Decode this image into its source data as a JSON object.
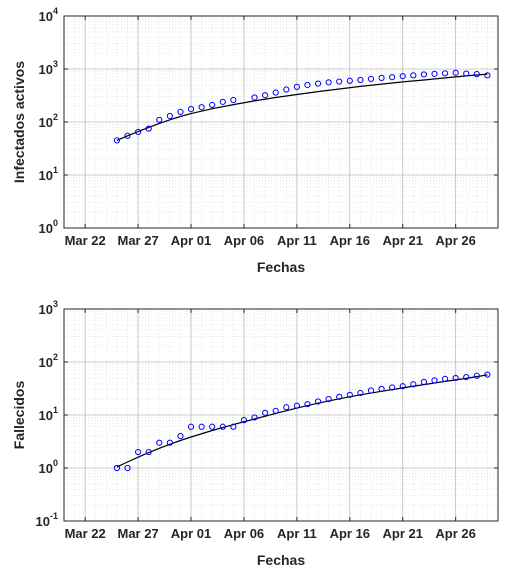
{
  "chart_data": [
    {
      "type": "scatter",
      "xlabel": "Fechas",
      "ylabel": "Infectados activos",
      "yscale": "log",
      "ylim": [
        1,
        10000
      ],
      "xlim": [
        "2020-03-20",
        "2020-04-30"
      ],
      "x_ticks": [
        "Mar 22",
        "Mar 27",
        "Apr 01",
        "Apr 06",
        "Apr 11",
        "Apr 16",
        "Apr 21",
        "Apr 26"
      ],
      "y_ticks": [
        {
          "base": "10",
          "exp": "0",
          "value": 1
        },
        {
          "base": "10",
          "exp": "1",
          "value": 10
        },
        {
          "base": "10",
          "exp": "2",
          "value": 100
        },
        {
          "base": "10",
          "exp": "3",
          "value": 1000
        },
        {
          "base": "10",
          "exp": "4",
          "value": 10000
        }
      ],
      "grid": true,
      "minor_grid": true,
      "series": [
        {
          "style": "markers",
          "marker": "circle",
          "color": "#0000ff",
          "x": [
            "2020-03-25",
            "2020-03-26",
            "2020-03-27",
            "2020-03-28",
            "2020-03-29",
            "2020-03-30",
            "2020-03-31",
            "2020-04-01",
            "2020-04-02",
            "2020-04-03",
            "2020-04-04",
            "2020-04-05",
            "2020-04-07",
            "2020-04-08",
            "2020-04-09",
            "2020-04-10",
            "2020-04-11",
            "2020-04-12",
            "2020-04-13",
            "2020-04-14",
            "2020-04-15",
            "2020-04-16",
            "2020-04-17",
            "2020-04-18",
            "2020-04-19",
            "2020-04-20",
            "2020-04-21",
            "2020-04-22",
            "2020-04-23",
            "2020-04-24",
            "2020-04-25",
            "2020-04-26",
            "2020-04-27",
            "2020-04-28",
            "2020-04-29"
          ],
          "y": [
            45,
            55,
            65,
            75,
            110,
            130,
            155,
            175,
            190,
            210,
            240,
            260,
            290,
            320,
            360,
            410,
            460,
            500,
            530,
            560,
            580,
            600,
            620,
            650,
            680,
            700,
            730,
            760,
            790,
            810,
            830,
            850,
            820,
            800,
            760
          ]
        },
        {
          "style": "line",
          "color": "#000000",
          "x": [
            "2020-03-25",
            "2020-03-26",
            "2020-03-27",
            "2020-03-28",
            "2020-03-29",
            "2020-03-30",
            "2020-03-31",
            "2020-04-01",
            "2020-04-03",
            "2020-04-05",
            "2020-04-07",
            "2020-04-09",
            "2020-04-11",
            "2020-04-13",
            "2020-04-15",
            "2020-04-17",
            "2020-04-19",
            "2020-04-21",
            "2020-04-23",
            "2020-04-25",
            "2020-04-27",
            "2020-04-29"
          ],
          "y": [
            45,
            55,
            66,
            79,
            94,
            110,
            127,
            144,
            178,
            213,
            250,
            290,
            330,
            375,
            420,
            470,
            520,
            570,
            620,
            680,
            740,
            800
          ]
        }
      ]
    },
    {
      "type": "scatter",
      "xlabel": "Fechas",
      "ylabel": "Fallecidos",
      "yscale": "log",
      "ylim": [
        0.1,
        1000
      ],
      "xlim": [
        "2020-03-20",
        "2020-04-30"
      ],
      "x_ticks": [
        "Mar 22",
        "Mar 27",
        "Apr 01",
        "Apr 06",
        "Apr 11",
        "Apr 16",
        "Apr 21",
        "Apr 26"
      ],
      "y_ticks": [
        {
          "base": "10",
          "exp": "-1",
          "value": 0.1
        },
        {
          "base": "10",
          "exp": "0",
          "value": 1
        },
        {
          "base": "10",
          "exp": "1",
          "value": 10
        },
        {
          "base": "10",
          "exp": "2",
          "value": 100
        },
        {
          "base": "10",
          "exp": "3",
          "value": 1000
        }
      ],
      "grid": true,
      "minor_grid": true,
      "series": [
        {
          "style": "markers",
          "marker": "circle",
          "color": "#0000ff",
          "x": [
            "2020-03-25",
            "2020-03-26",
            "2020-03-27",
            "2020-03-28",
            "2020-03-29",
            "2020-03-30",
            "2020-03-31",
            "2020-04-01",
            "2020-04-02",
            "2020-04-03",
            "2020-04-04",
            "2020-04-05",
            "2020-04-06",
            "2020-04-07",
            "2020-04-08",
            "2020-04-09",
            "2020-04-10",
            "2020-04-11",
            "2020-04-12",
            "2020-04-13",
            "2020-04-14",
            "2020-04-15",
            "2020-04-16",
            "2020-04-17",
            "2020-04-18",
            "2020-04-19",
            "2020-04-20",
            "2020-04-21",
            "2020-04-22",
            "2020-04-23",
            "2020-04-24",
            "2020-04-25",
            "2020-04-26",
            "2020-04-27",
            "2020-04-28",
            "2020-04-29"
          ],
          "y": [
            1,
            1,
            2,
            2,
            3,
            3,
            4,
            6,
            6,
            6,
            6,
            6,
            8,
            9,
            11,
            12,
            14,
            15,
            16,
            18,
            20,
            22,
            24,
            26,
            29,
            31,
            33,
            35,
            38,
            42,
            45,
            48,
            50,
            52,
            55,
            58
          ]
        },
        {
          "style": "line",
          "color": "#000000",
          "x": [
            "2020-03-25",
            "2020-03-26",
            "2020-03-27",
            "2020-03-28",
            "2020-03-29",
            "2020-03-30",
            "2020-03-31",
            "2020-04-01",
            "2020-04-03",
            "2020-04-05",
            "2020-04-07",
            "2020-04-09",
            "2020-04-11",
            "2020-04-13",
            "2020-04-15",
            "2020-04-17",
            "2020-04-19",
            "2020-04-21",
            "2020-04-23",
            "2020-04-25",
            "2020-04-27",
            "2020-04-29"
          ],
          "y": [
            1.05,
            1.3,
            1.6,
            1.95,
            2.35,
            2.8,
            3.3,
            3.85,
            5.1,
            6.6,
            8.4,
            10.7,
            13.5,
            16.7,
            20.2,
            24,
            28,
            32.5,
            37.5,
            43,
            49,
            57
          ]
        }
      ]
    }
  ]
}
